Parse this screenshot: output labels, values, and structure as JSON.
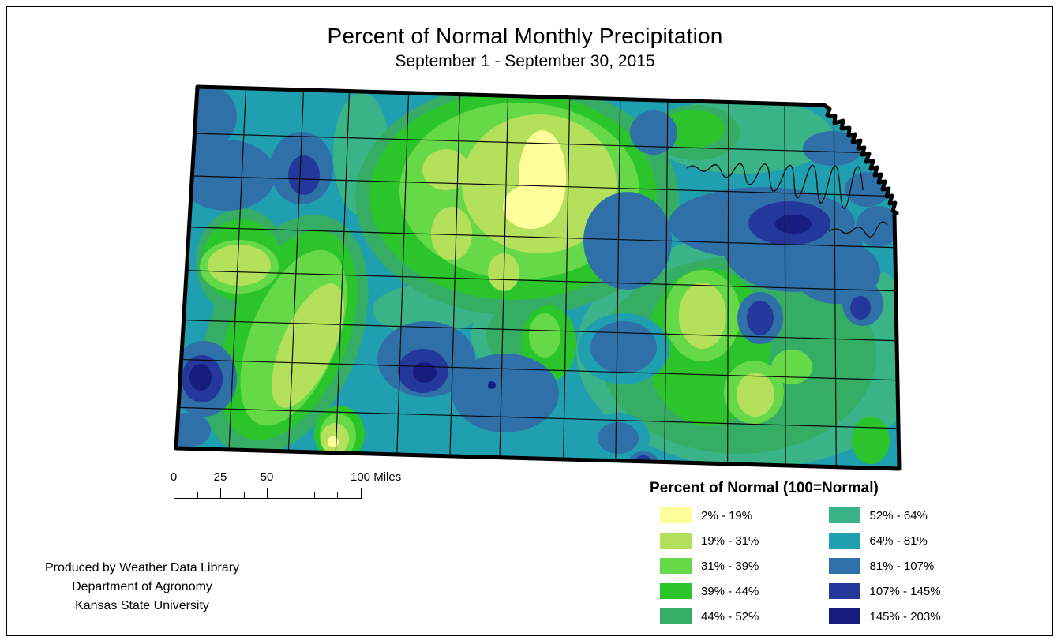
{
  "title": "Percent of Normal Monthly Precipitation",
  "subtitle": "September 1 - September 30, 2015",
  "map": {
    "region": "Kansas",
    "border_color": "#000000"
  },
  "scalebar": {
    "ticks": [
      {
        "label": "0"
      },
      {
        "label": "25"
      },
      {
        "label": "50"
      },
      {
        "label": "100 Miles"
      }
    ]
  },
  "legend": {
    "title": "Percent of Normal (100=Normal)",
    "items": [
      {
        "label": "2% - 19%",
        "color": "#FDFD99"
      },
      {
        "label": "19% - 31%",
        "color": "#B4E05C"
      },
      {
        "label": "31% - 39%",
        "color": "#65D948"
      },
      {
        "label": "39% - 44%",
        "color": "#2BC52B"
      },
      {
        "label": "44% - 52%",
        "color": "#36AD65"
      },
      {
        "label": "52% - 64%",
        "color": "#3AB389"
      },
      {
        "label": "64% - 81%",
        "color": "#1F9FB0"
      },
      {
        "label": "81% - 107%",
        "color": "#2F70A8"
      },
      {
        "label": "107% - 145%",
        "color": "#24389B"
      },
      {
        "label": "145% - 203%",
        "color": "#171D7E"
      }
    ]
  },
  "credits": {
    "line1": "Produced by Weather Data Library",
    "line2": "Department of Agronomy",
    "line3": "Kansas State University"
  }
}
